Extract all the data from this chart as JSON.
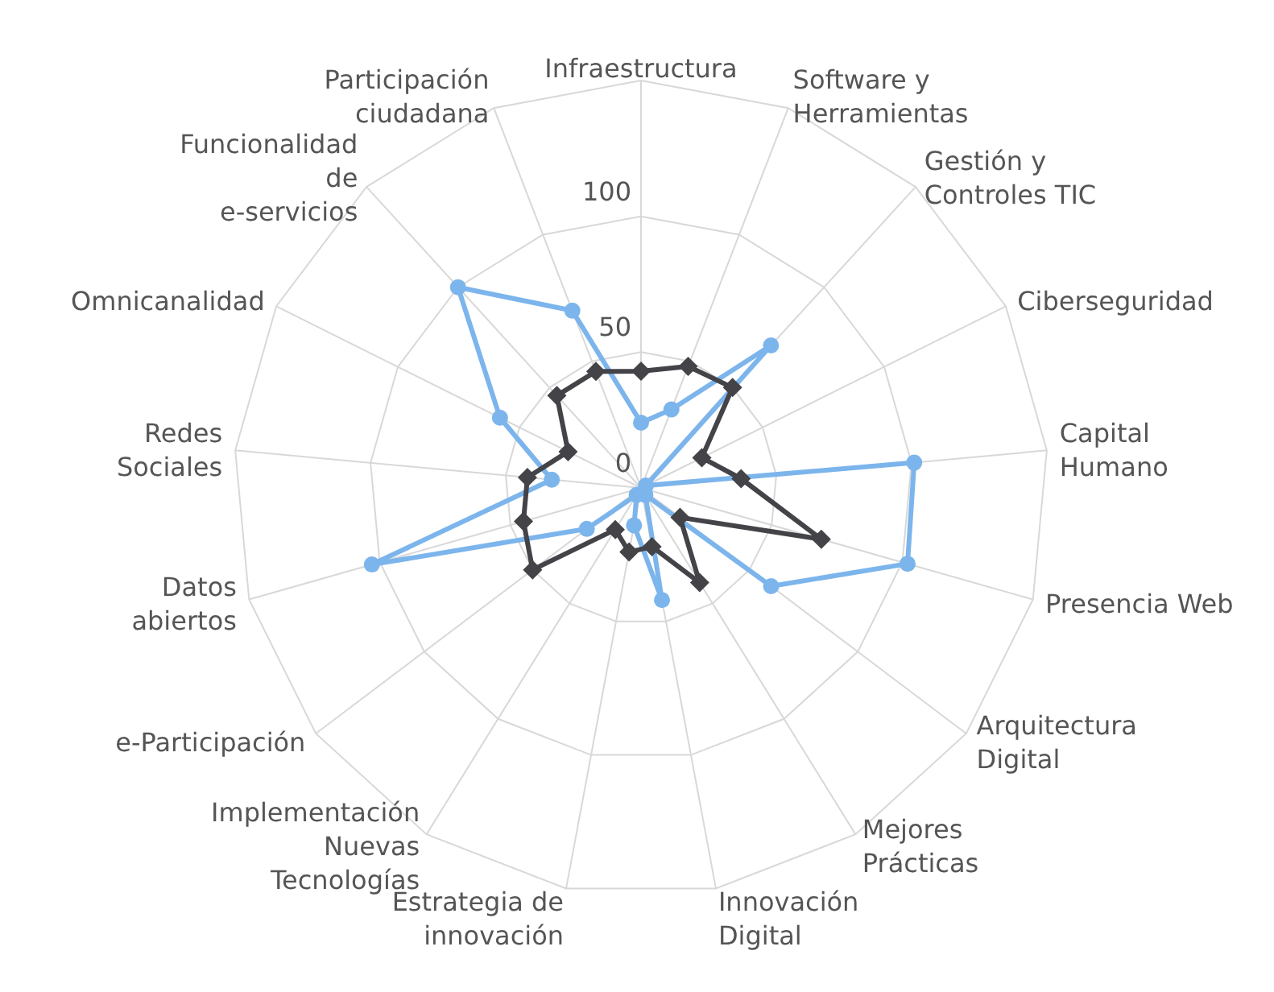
{
  "chart_data": {
    "type": "radar",
    "categories": [
      "Infraestructura",
      "Software y Herramientas",
      "Gestión y Controles TIC",
      "Ciberseguridad",
      "Capital Humano",
      "Presencia Web",
      "Arquitectura Digital",
      "Mejores Prácticas",
      "Innovación Digital",
      "Estrategia de innovación",
      "Implementación Nuevas Tecnologías",
      "e-Participación",
      "Datos abiertos",
      "Redes Sociales",
      "Omnicanalidad",
      "Funcionalidad de e-servicios",
      "Participación ciudadana"
    ],
    "series": [
      {
        "color": "#7cb5ec",
        "marker": "circle",
        "values": [
          24,
          31,
          71,
          2,
          101,
          102,
          60,
          3,
          42,
          14,
          3,
          25,
          103,
          33,
          58,
          100,
          70
        ]
      },
      {
        "color": "#434348",
        "marker": "diamond",
        "values": [
          43,
          48,
          50,
          25,
          37,
          69,
          18,
          41,
          22,
          24,
          18,
          50,
          45,
          42,
          30,
          46,
          46
        ]
      }
    ],
    "ylim": [
      0,
      150
    ],
    "yticks": [
      0,
      50,
      100
    ],
    "grid": true,
    "legend": false
  }
}
